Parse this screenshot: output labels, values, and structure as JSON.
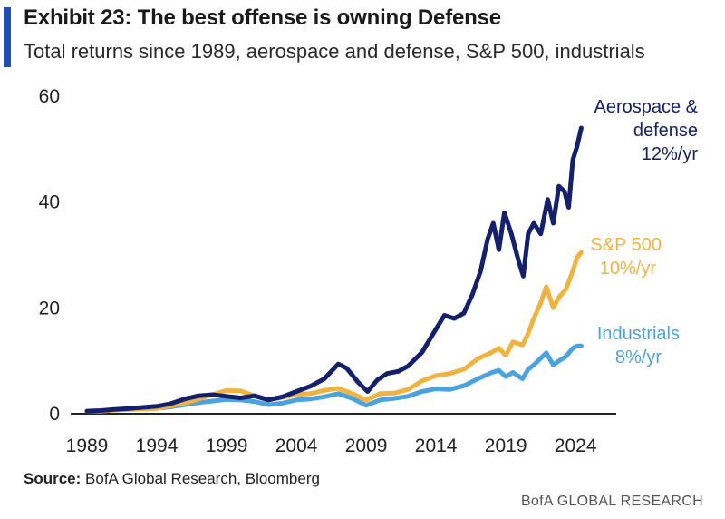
{
  "header": {
    "title": "Exhibit 23: The best offense is owning Defense",
    "subtitle": "Total returns since 1989, aerospace and defense, S&P 500, industrials"
  },
  "footer": {
    "source_label": "Source:",
    "source_text": "BofA Global Research, Bloomberg",
    "brand": "BofA GLOBAL RESEARCH"
  },
  "colors": {
    "accent": "#1f4fb4",
    "aerospace": "#14206b",
    "sp500": "#f0b341",
    "industrials": "#4aa3df"
  },
  "chart_data": {
    "type": "line",
    "title": "Exhibit 23: The best offense is owning Defense",
    "subtitle": "Total returns since 1989, aerospace and defense, S&P 500, industrials",
    "xlim": [
      1989,
      2026
    ],
    "ylim": [
      0,
      60
    ],
    "x_ticks": [
      "1989",
      "1994",
      "1999",
      "2004",
      "2009",
      "2014",
      "2019",
      "2024"
    ],
    "y_ticks": [
      "0",
      "20",
      "40",
      "60"
    ],
    "grid": false,
    "series": [
      {
        "key": "aerospace",
        "label_lines": [
          "Aerospace &",
          "defense",
          "12%/yr"
        ],
        "color": "#14206b",
        "points": [
          [
            1989,
            0.5
          ],
          [
            1990,
            0.6
          ],
          [
            1991,
            0.8
          ],
          [
            1992,
            1.0
          ],
          [
            1993,
            1.2
          ],
          [
            1994,
            1.4
          ],
          [
            1995,
            1.9
          ],
          [
            1996,
            2.8
          ],
          [
            1997,
            3.4
          ],
          [
            1998,
            3.6
          ],
          [
            1999,
            3.3
          ],
          [
            2000,
            3.0
          ],
          [
            2001,
            3.4
          ],
          [
            2002,
            2.6
          ],
          [
            2003,
            3.2
          ],
          [
            2004,
            4.2
          ],
          [
            2005,
            5.2
          ],
          [
            2006,
            6.6
          ],
          [
            2007,
            9.4
          ],
          [
            2007.6,
            8.6
          ],
          [
            2008.4,
            6.0
          ],
          [
            2009.1,
            4.2
          ],
          [
            2009.8,
            6.4
          ],
          [
            2010.5,
            7.6
          ],
          [
            2011.3,
            8.0
          ],
          [
            2012,
            9.0
          ],
          [
            2013,
            11.6
          ],
          [
            2014,
            16.0
          ],
          [
            2014.6,
            18.6
          ],
          [
            2015.3,
            18.0
          ],
          [
            2016,
            19.0
          ],
          [
            2016.6,
            22.5
          ],
          [
            2017.2,
            27.0
          ],
          [
            2017.7,
            33.0
          ],
          [
            2018.1,
            36.0
          ],
          [
            2018.5,
            31.0
          ],
          [
            2018.9,
            38.0
          ],
          [
            2019.4,
            34.0
          ],
          [
            2019.9,
            29.0
          ],
          [
            2020.25,
            26.0
          ],
          [
            2020.6,
            34.0
          ],
          [
            2021,
            36.0
          ],
          [
            2021.5,
            34.0
          ],
          [
            2022,
            40.5
          ],
          [
            2022.4,
            36.0
          ],
          [
            2022.8,
            43.0
          ],
          [
            2023.2,
            42.0
          ],
          [
            2023.5,
            39.0
          ],
          [
            2023.8,
            48.0
          ],
          [
            2024.1,
            50.5
          ],
          [
            2024.4,
            54.0
          ]
        ]
      },
      {
        "key": "sp500",
        "label_lines": [
          "S&P 500",
          "10%/yr"
        ],
        "color": "#f0b341",
        "points": [
          [
            1989,
            0.5
          ],
          [
            1990,
            0.5
          ],
          [
            1991,
            0.7
          ],
          [
            1992,
            0.8
          ],
          [
            1993,
            0.9
          ],
          [
            1994,
            1.0
          ],
          [
            1995,
            1.5
          ],
          [
            1996,
            2.0
          ],
          [
            1997,
            2.8
          ],
          [
            1998,
            3.6
          ],
          [
            1999,
            4.4
          ],
          [
            2000,
            4.3
          ],
          [
            2001,
            3.4
          ],
          [
            2002,
            2.6
          ],
          [
            2003,
            3.1
          ],
          [
            2004,
            3.6
          ],
          [
            2005,
            3.8
          ],
          [
            2006,
            4.4
          ],
          [
            2007,
            4.8
          ],
          [
            2008,
            3.8
          ],
          [
            2009,
            2.6
          ],
          [
            2010,
            3.8
          ],
          [
            2011,
            3.9
          ],
          [
            2012,
            4.6
          ],
          [
            2013,
            6.2
          ],
          [
            2014,
            7.2
          ],
          [
            2015,
            7.6
          ],
          [
            2016,
            8.4
          ],
          [
            2017,
            10.4
          ],
          [
            2018,
            11.6
          ],
          [
            2018.5,
            12.4
          ],
          [
            2019,
            11.0
          ],
          [
            2019.5,
            13.6
          ],
          [
            2020.2,
            13.0
          ],
          [
            2020.6,
            15.2
          ],
          [
            2021,
            18.0
          ],
          [
            2021.5,
            21.0
          ],
          [
            2021.9,
            24.0
          ],
          [
            2022.4,
            20.0
          ],
          [
            2022.8,
            22.0
          ],
          [
            2023.3,
            23.5
          ],
          [
            2023.8,
            27.0
          ],
          [
            2024.1,
            29.5
          ],
          [
            2024.4,
            30.5
          ]
        ]
      },
      {
        "key": "industrials",
        "label_lines": [
          "Industrials",
          "8%/yr"
        ],
        "color": "#4aa3df",
        "points": [
          [
            1989,
            0.5
          ],
          [
            1990,
            0.5
          ],
          [
            1991,
            0.7
          ],
          [
            1992,
            0.8
          ],
          [
            1993,
            0.9
          ],
          [
            1994,
            1.0
          ],
          [
            1995,
            1.3
          ],
          [
            1996,
            1.7
          ],
          [
            1997,
            2.1
          ],
          [
            1998,
            2.4
          ],
          [
            1999,
            2.7
          ],
          [
            2000,
            2.6
          ],
          [
            2001,
            2.3
          ],
          [
            2002,
            1.7
          ],
          [
            2003,
            2.0
          ],
          [
            2004,
            2.6
          ],
          [
            2005,
            2.8
          ],
          [
            2006,
            3.2
          ],
          [
            2007,
            3.8
          ],
          [
            2008,
            2.9
          ],
          [
            2009,
            1.6
          ],
          [
            2010,
            2.6
          ],
          [
            2011,
            2.9
          ],
          [
            2012,
            3.3
          ],
          [
            2013,
            4.2
          ],
          [
            2014,
            4.7
          ],
          [
            2015,
            4.6
          ],
          [
            2016,
            5.3
          ],
          [
            2017,
            6.6
          ],
          [
            2018,
            7.8
          ],
          [
            2018.5,
            8.2
          ],
          [
            2019,
            7.0
          ],
          [
            2019.5,
            7.8
          ],
          [
            2020.2,
            6.6
          ],
          [
            2020.6,
            8.4
          ],
          [
            2021,
            9.2
          ],
          [
            2021.5,
            10.5
          ],
          [
            2021.9,
            11.5
          ],
          [
            2022.4,
            9.2
          ],
          [
            2022.8,
            10.0
          ],
          [
            2023.3,
            10.8
          ],
          [
            2023.8,
            12.4
          ],
          [
            2024.1,
            12.8
          ],
          [
            2024.4,
            12.8
          ]
        ]
      }
    ]
  }
}
